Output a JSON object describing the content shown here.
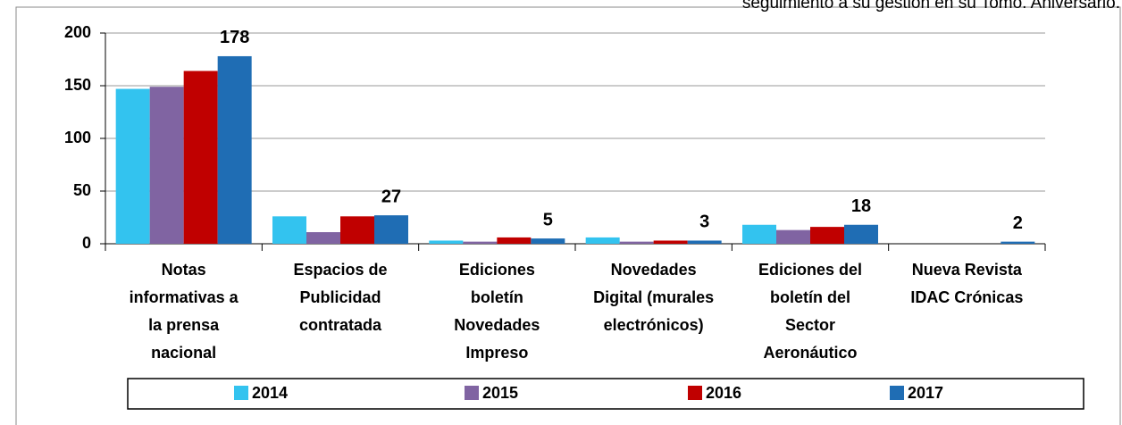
{
  "header": {
    "text": "seguimiento a su gestión en su Tomo. Aniversario."
  },
  "chart_data": {
    "type": "bar",
    "categories": [
      "Notas\ninformativas a\nla prensa\nnacional",
      "Espacios de\nPublicidad\ncontratada",
      "Ediciones\nboletín\nNovedades\nImpreso",
      "Novedades\nDigital (murales\nelectrónicos)",
      "Ediciones del\nboletín del\nSector\nAeronáutico",
      "Nueva Revista\nIDAC Crónicas"
    ],
    "series": [
      {
        "name": "2014",
        "color": "#33c3ef",
        "values": [
          147,
          26,
          3,
          6,
          18,
          0
        ]
      },
      {
        "name": "2015",
        "color": "#8064a2",
        "values": [
          149,
          11,
          2,
          2,
          13,
          0
        ]
      },
      {
        "name": "2016",
        "color": "#c00000",
        "values": [
          164,
          26,
          6,
          3,
          16,
          0
        ]
      },
      {
        "name": "2017",
        "color": "#1f6db4",
        "values": [
          178,
          27,
          5,
          3,
          18,
          2
        ],
        "data_labels": true
      }
    ],
    "ylim": [
      0,
      200
    ],
    "yticks": [
      0,
      50,
      100,
      150,
      200
    ],
    "grid": true,
    "legend": "bottom"
  }
}
